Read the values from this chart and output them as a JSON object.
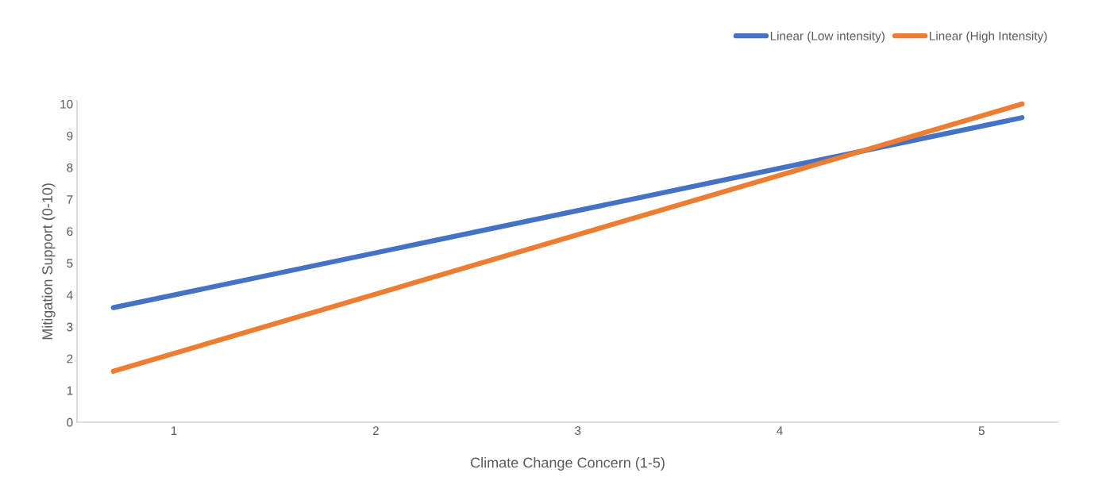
{
  "chart_data": {
    "type": "line",
    "xlabel": "Climate Change Concern (1-5)",
    "ylabel": "Mitigation Support (0-10)",
    "x": [
      0.7,
      5.2
    ],
    "series": [
      {
        "name": "Linear (Low intensity)",
        "color": "#4472c4",
        "values": [
          3.6,
          9.57
        ]
      },
      {
        "name": "Linear (High Intensity)",
        "color": "#ed7d31",
        "values": [
          1.6,
          10.0
        ]
      }
    ],
    "xlim": [
      0.52,
      5.38
    ],
    "xticks": [
      1,
      2,
      3,
      4,
      5
    ],
    "ylim": [
      0,
      10.1
    ],
    "yticks": [
      0,
      1,
      2,
      3,
      4,
      5,
      6,
      7,
      8,
      9,
      10
    ],
    "grid": false,
    "legend": "top right",
    "marker": "none",
    "line_style": "solid"
  }
}
